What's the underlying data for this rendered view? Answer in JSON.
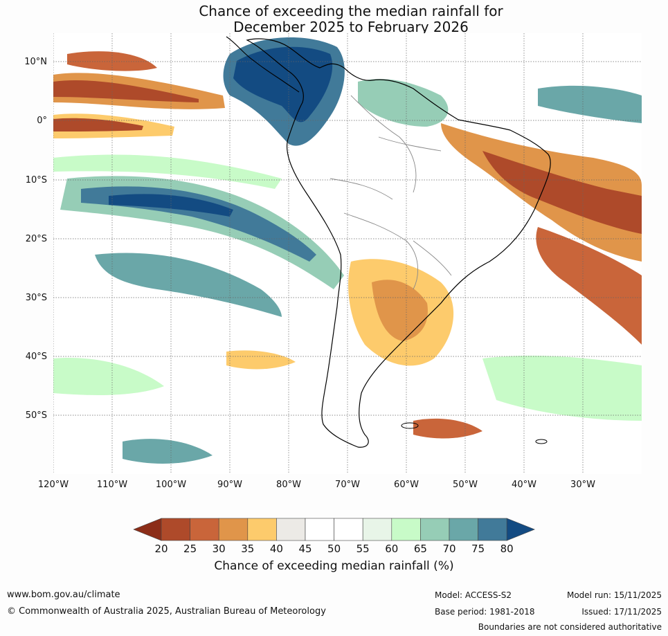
{
  "title": {
    "line1": "Chance of exceeding the median rainfall for",
    "line2": "December 2025 to February 2026"
  },
  "map": {
    "region": "South America and adjacent oceans",
    "lat_labels": [
      "10°N",
      "0°",
      "10°S",
      "20°S",
      "30°S",
      "40°S",
      "50°S"
    ],
    "lon_labels": [
      "120°W",
      "110°W",
      "100°W",
      "90°W",
      "80°W",
      "70°W",
      "60°W",
      "50°W",
      "40°W",
      "30°W"
    ]
  },
  "colorbar": {
    "ticks": [
      "20",
      "25",
      "30",
      "35",
      "40",
      "45",
      "50",
      "55",
      "60",
      "65",
      "70",
      "75",
      "80"
    ],
    "colors": [
      "#8c2d18",
      "#ae4a2a",
      "#c9653a",
      "#e0954a",
      "#fdcb6c",
      "#eceae6",
      "#ffffff",
      "#ffffff",
      "#e8f5e8",
      "#c8fbc8",
      "#96cdb6",
      "#6aa7a8",
      "#417a99",
      "#134b82"
    ],
    "label": "Chance of exceeding median rainfall (%)"
  },
  "footer": {
    "website": "www.bom.gov.au/climate",
    "copyright": "© Commonwealth of Australia 2025, Australian Bureau of Meteorology",
    "model": "Model: ACCESS-S2",
    "base_period": "Base period: 1981-2018",
    "model_run": "Model run: 15/11/2025",
    "issued": "Issued: 17/11/2025",
    "disclaimer": "Boundaries are not considered authoritative"
  }
}
